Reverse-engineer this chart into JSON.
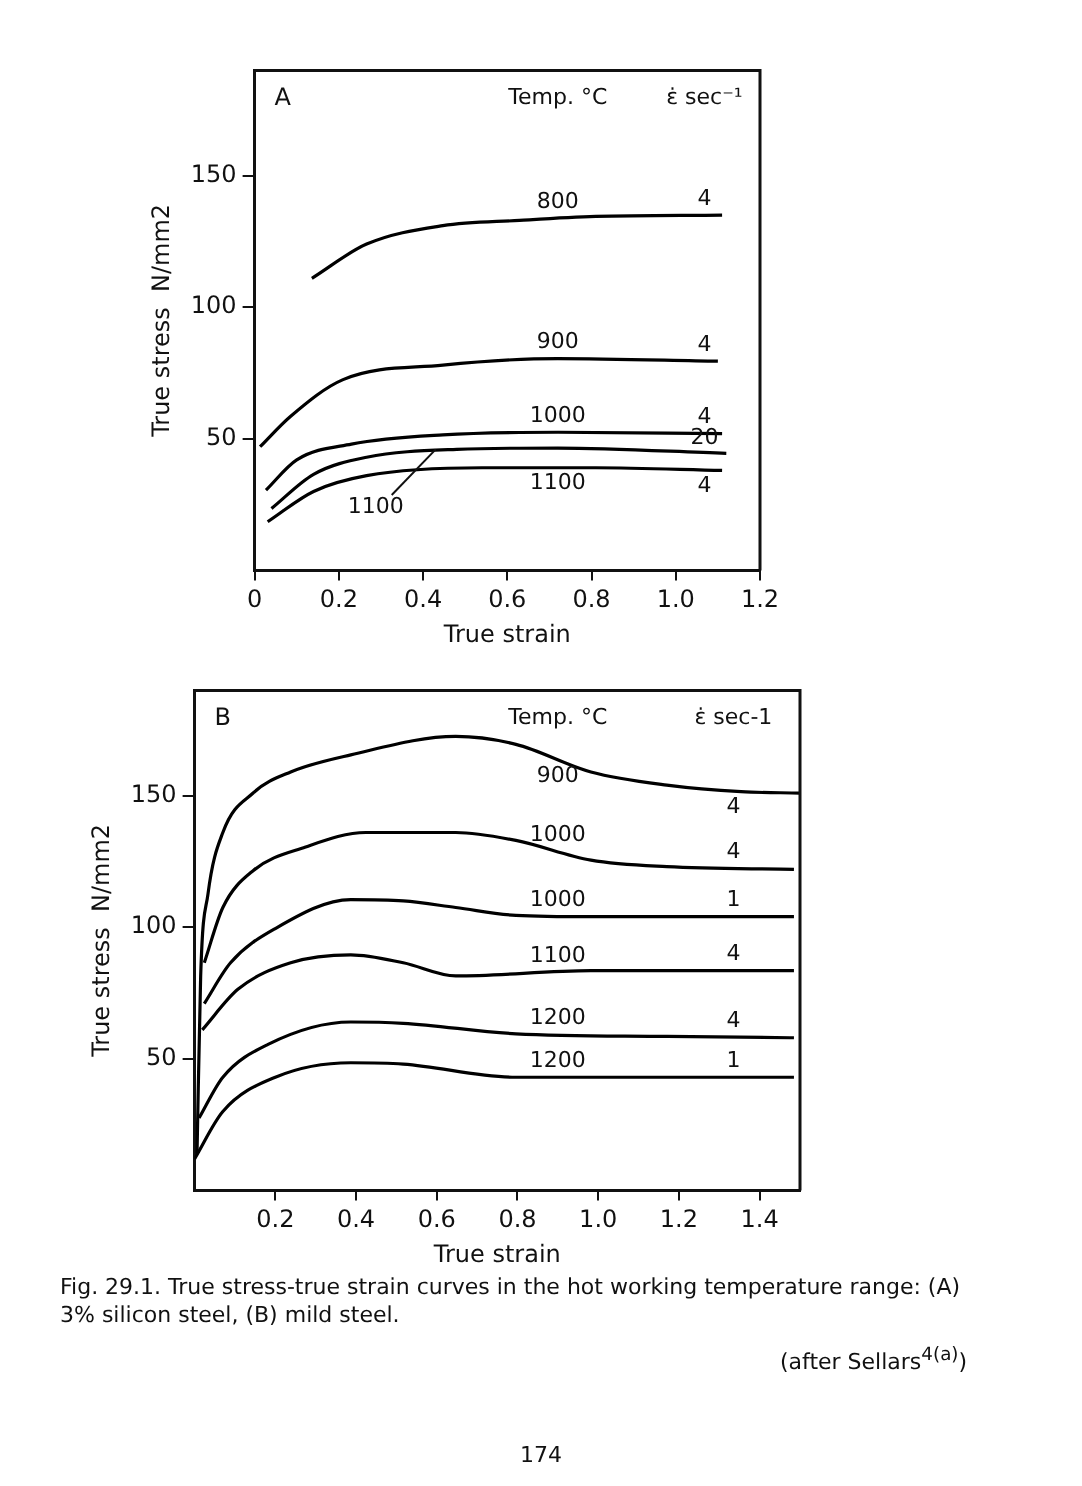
{
  "chart_data": [
    {
      "type": "line",
      "title": "A",
      "xlabel": "True strain",
      "ylabel": "True stress  N/mm2",
      "xlim": [
        0,
        1.2
      ],
      "ylim": [
        0,
        190
      ],
      "xticks": [
        0,
        0.2,
        0.4,
        0.6,
        0.8,
        {
          "value": 1,
          "label": "1.0"
        },
        1.2
      ],
      "yticks": [
        50,
        100,
        150
      ],
      "grid": false,
      "legend": false,
      "marker": "none",
      "line_style": "solid",
      "series": [
        {
          "name": "800",
          "color": "#000000",
          "x": [
            0.136,
            0.266,
            0.447,
            0.629,
            0.81,
            1.11
          ],
          "values": [
            111,
            124,
            131,
            133,
            134.5,
            135
          ]
        },
        {
          "name": "900",
          "color": "#000000",
          "x": [
            0.013,
            0.085,
            0.21,
            0.447,
            0.72,
            1.1
          ],
          "values": [
            47,
            58.5,
            72.5,
            78,
            80.5,
            79.5
          ]
        },
        {
          "name": "1000",
          "color": "#000000",
          "x": [
            0.027,
            0.1,
            0.23,
            0.447,
            0.72,
            1.11
          ],
          "values": [
            30.5,
            42,
            48,
            51.5,
            52.5,
            52
          ]
        },
        {
          "color": "#000000",
          "x": [
            0.04,
            0.14,
            0.266,
            0.48,
            0.72,
            1.12
          ],
          "values": [
            23.5,
            36.5,
            43,
            46,
            46.5,
            44.5
          ]
        },
        {
          "name": "1100",
          "color": "#000000",
          "x": [
            0.031,
            0.14,
            0.266,
            0.54,
            0.81,
            1.11
          ],
          "values": [
            18.5,
            30,
            36,
            39,
            39,
            38
          ]
        }
      ],
      "annotations": [
        "Temp. °C",
        "ε̇ sec⁻¹",
        "4",
        "4",
        "4",
        "20",
        "4",
        {
          "text": "1100",
          "x": 0.43,
          "y": 46
        }
      ]
    },
    {
      "type": "line",
      "title": "B",
      "xlabel": "True strain",
      "ylabel": "True stress  N/mm2",
      "xlim": [
        0,
        1.5
      ],
      "ylim": [
        0,
        190
      ],
      "xticks": [
        0.2,
        0.4,
        0.6,
        0.8,
        {
          "value": 1,
          "label": "1.0"
        },
        1.2,
        1.4
      ],
      "yticks": [
        50,
        100,
        150
      ],
      "grid": false,
      "legend": false,
      "marker": "none",
      "line_style": "solid",
      "series": [
        {
          "name": "900",
          "color": "#000000",
          "x": [
            0.006,
            0.015,
            0.033,
            0.07,
            0.145,
            0.238,
            0.387,
            0.647,
            0.796,
            0.982,
            1.17,
            1.354,
            1.5
          ],
          "values": [
            14,
            81.5,
            112.5,
            136,
            151,
            159,
            165.5,
            172.5,
            169.5,
            159,
            154,
            151.5,
            151
          ]
        },
        {
          "name": "1000",
          "color": "#000000",
          "x": [
            0.024,
            0.07,
            0.145,
            0.275,
            0.424,
            0.647,
            0.796,
            0.982,
            1.17,
            1.485
          ],
          "values": [
            86.5,
            107.5,
            121.5,
            130.5,
            136,
            136,
            133,
            125.5,
            123,
            122
          ]
        },
        {
          "name": "1000",
          "color": "#000000",
          "x": [
            0.024,
            0.089,
            0.2,
            0.387,
            0.517,
            0.647,
            0.796,
            0.982,
            1.485
          ],
          "values": [
            71,
            86.5,
            99.5,
            110.5,
            110,
            107.5,
            104.5,
            104,
            104
          ]
        },
        {
          "name": "1100",
          "color": "#000000",
          "x": [
            0.019,
            0.108,
            0.238,
            0.387,
            0.517,
            0.647,
            0.982,
            1.485
          ],
          "values": [
            61,
            76.5,
            86.5,
            89.5,
            86.5,
            81.5,
            83.5,
            83.5
          ]
        },
        {
          "name": "1200",
          "color": "#000000",
          "x": [
            0.011,
            0.07,
            0.182,
            0.387,
            0.517,
            0.796,
            1.17,
            1.485
          ],
          "values": [
            27.5,
            43,
            55.5,
            64,
            63.5,
            59.5,
            58.5,
            58
          ]
        },
        {
          "name": "1200",
          "color": "#000000",
          "x": [
            0,
            0.07,
            0.2,
            0.387,
            0.517,
            0.796,
            1.17,
            1.485
          ],
          "values": [
            12,
            30,
            43,
            48.5,
            48,
            43,
            43,
            43
          ]
        }
      ],
      "annotations": [
        "Temp. °C",
        "ε̇ sec-1",
        "4",
        "4",
        "1",
        "4",
        "4",
        "1",
        "Fig. 29.1.  True stress-true strain curves in the hot working temperature range: (A) 3% silicon steel, (B) mild steel.",
        "(after Sellars$^{4(a)}$)",
        "174"
      ]
    }
  ]
}
